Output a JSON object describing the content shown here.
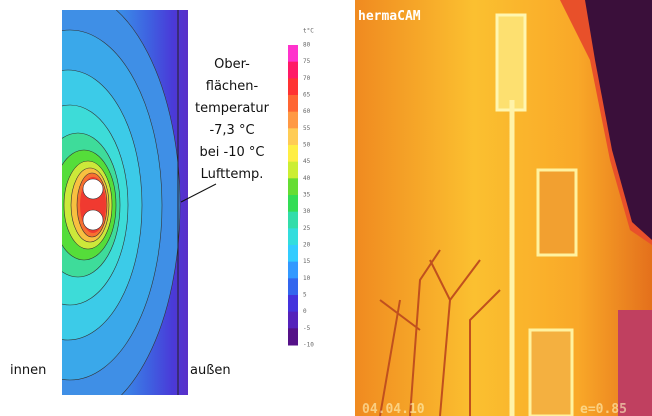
{
  "annotation": {
    "lines": [
      "Ober-",
      "flächen-",
      "temperatur",
      "-7,3 °C",
      "bei -10 °C",
      "Lufttemp."
    ]
  },
  "labels": {
    "inside": "innen",
    "outside": "außen"
  },
  "legend": {
    "unit": "t°C",
    "ticks": [
      80,
      75,
      70,
      65,
      60,
      55,
      50,
      45,
      40,
      35,
      30,
      25,
      20,
      15,
      10,
      5,
      0,
      -5,
      -10
    ]
  },
  "photo": {
    "camera": "hermaCAM",
    "date": "04.04.10",
    "emissivity": "e=0.85"
  }
}
